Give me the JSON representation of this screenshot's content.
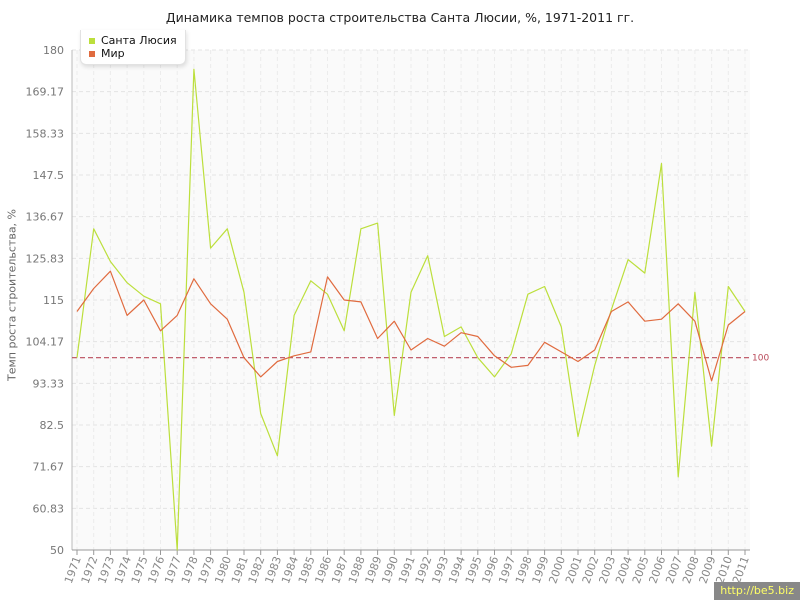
{
  "chart_data": {
    "type": "line",
    "title": "Динамика темпов роста строительства Санта Люсии, %, 1971-2011 гг.",
    "xlabel": "",
    "ylabel": "Темп роста строительства, %",
    "ylim": [
      50,
      180
    ],
    "y_ticks": [
      "50",
      "60.83",
      "71.67",
      "82.5",
      "93.33",
      "104.17",
      "115",
      "125.83",
      "136.67",
      "147.5",
      "158.33",
      "169.17",
      "180"
    ],
    "categories": [
      "1971",
      "1972",
      "1973",
      "1974",
      "1975",
      "1976",
      "1977",
      "1978",
      "1979",
      "1980",
      "1981",
      "1982",
      "1983",
      "1984",
      "1985",
      "1986",
      "1987",
      "1988",
      "1989",
      "1990",
      "1991",
      "1992",
      "1993",
      "1994",
      "1995",
      "1996",
      "1997",
      "1998",
      "1999",
      "2000",
      "2001",
      "2002",
      "2003",
      "2004",
      "2005",
      "2006",
      "2007",
      "2008",
      "2009",
      "2010",
      "2011"
    ],
    "series": [
      {
        "name": "Санта Люсия",
        "color": "#bcdf3c",
        "values": [
          100,
          133.5,
          125,
          119.5,
          116,
          114,
          50,
          175,
          128.5,
          133.5,
          117,
          85.5,
          74.5,
          111,
          120,
          116.5,
          107,
          133.5,
          135,
          85,
          117,
          126.5,
          105.5,
          108,
          100,
          95,
          101,
          116.5,
          118.5,
          108,
          79.5,
          98,
          112.5,
          125.5,
          122,
          150.5,
          69,
          117,
          77,
          118.5,
          112
        ]
      },
      {
        "name": "Мир",
        "color": "#e06b3f",
        "values": [
          112,
          118,
          122.5,
          111,
          115,
          107,
          111,
          120.5,
          114,
          110,
          100,
          95,
          99,
          100.5,
          101.5,
          121,
          115,
          114.5,
          105,
          109.5,
          102,
          105,
          103,
          106.5,
          105.5,
          100.5,
          97.5,
          98,
          104,
          101.5,
          99,
          102,
          112,
          114.5,
          109.5,
          110,
          114,
          109.5,
          94,
          108.5,
          112
        ]
      }
    ],
    "reference_line": {
      "value": 100,
      "label": "100",
      "color": "#b94a5a"
    },
    "grid": true,
    "legend": "top-left"
  },
  "watermark": "http://be5.biz"
}
